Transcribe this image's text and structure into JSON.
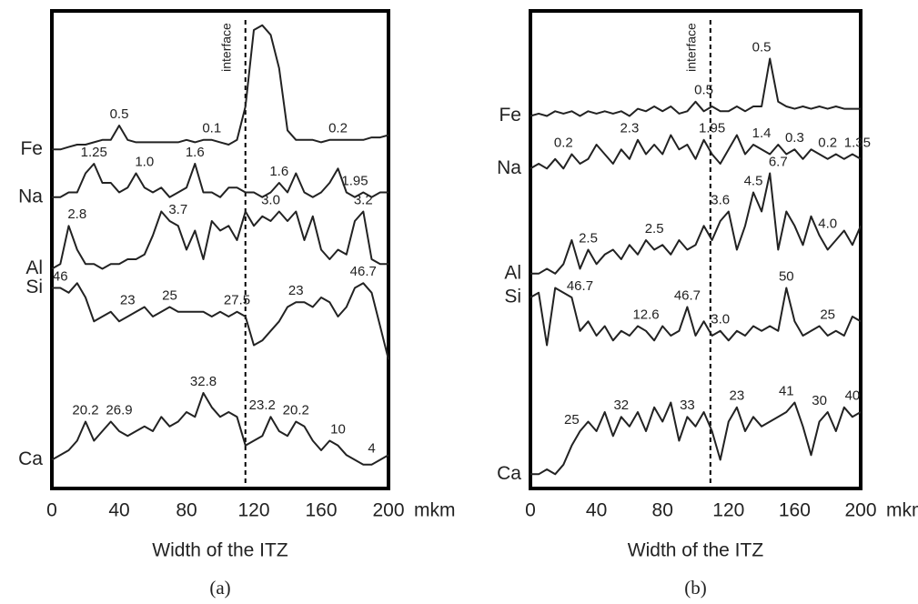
{
  "chart_data": [
    {
      "type": "line",
      "caption": "(a)",
      "xlabel": "Width of the ITZ",
      "x_unit": "mkm",
      "xlim": [
        0,
        200
      ],
      "xticks": [
        0,
        40,
        80,
        120,
        160,
        200
      ],
      "ylim": [
        0,
        100
      ],
      "interface": {
        "x": 115,
        "label": "interface"
      },
      "x": [
        0,
        5,
        10,
        15,
        20,
        25,
        30,
        35,
        40,
        45,
        50,
        55,
        60,
        65,
        70,
        75,
        80,
        85,
        90,
        95,
        100,
        105,
        110,
        115,
        120,
        125,
        130,
        135,
        140,
        145,
        150,
        155,
        160,
        165,
        170,
        175,
        180,
        185,
        190,
        195,
        200
      ],
      "series": [
        {
          "name": "Fe",
          "color": "#222222",
          "values": [
            71,
            71,
            71.5,
            72,
            72,
            72.5,
            73,
            73,
            76,
            73,
            72.5,
            72.5,
            72.5,
            72.5,
            72.5,
            72.5,
            73,
            72.5,
            73,
            73,
            72.5,
            72,
            73,
            80,
            96,
            97,
            95,
            88,
            75,
            73,
            73,
            73,
            72.5,
            73,
            73,
            73,
            73,
            73,
            73.5,
            73.5,
            74
          ],
          "notes": [
            {
              "x": 40,
              "label": "0.5"
            },
            {
              "x": 95,
              "label": "0.1"
            },
            {
              "x": 170,
              "label": "0.2"
            }
          ]
        },
        {
          "name": "Na",
          "color": "#222222",
          "values": [
            61,
            61,
            62,
            62,
            66,
            68,
            64,
            64,
            62,
            63,
            66,
            63,
            62,
            63,
            61,
            62,
            63,
            68,
            62,
            62,
            61,
            63,
            63,
            62,
            62,
            61,
            62,
            64,
            62,
            66,
            62,
            61,
            62,
            64,
            67,
            62,
            61,
            62,
            61,
            62,
            62
          ],
          "notes": [
            {
              "x": 25,
              "label": "1.25"
            },
            {
              "x": 55,
              "label": "1.0"
            },
            {
              "x": 85,
              "label": "1.6"
            },
            {
              "x": 135,
              "label": "1.6"
            },
            {
              "x": 180,
              "label": "1.95"
            }
          ]
        },
        {
          "name": "Al",
          "color": "#222222",
          "values": [
            46,
            47,
            55,
            50,
            47,
            47,
            46,
            47,
            47,
            48,
            48,
            49,
            53,
            58,
            56,
            55,
            50,
            54,
            48,
            56,
            54,
            55,
            52,
            58,
            55,
            57,
            56,
            58,
            56,
            58,
            52,
            57,
            50,
            48,
            50,
            49,
            56,
            58,
            48,
            47,
            47
          ],
          "notes": [
            {
              "x": 15,
              "label": "2.8"
            },
            {
              "x": 75,
              "label": "3.7"
            },
            {
              "x": 130,
              "label": "3.0"
            },
            {
              "x": 185,
              "label": "3.2"
            }
          ]
        },
        {
          "name": "Si",
          "color": "#222222",
          "values": [
            42,
            42,
            41,
            43,
            40,
            35,
            36,
            37,
            35,
            36,
            37,
            38,
            36,
            37,
            38,
            37,
            37,
            37,
            37,
            36,
            37,
            36,
            37,
            36,
            30,
            31,
            33,
            35,
            38,
            39,
            39,
            38,
            40,
            39,
            36,
            38,
            42,
            43,
            41,
            34,
            27
          ],
          "notes": [
            {
              "x": 5,
              "label": "46"
            },
            {
              "x": 45,
              "label": "23"
            },
            {
              "x": 70,
              "label": "25"
            },
            {
              "x": 110,
              "label": "27.5"
            },
            {
              "x": 145,
              "label": "23"
            },
            {
              "x": 185,
              "label": "46.7"
            }
          ]
        },
        {
          "name": "Ca",
          "color": "#222222",
          "values": [
            6,
            7,
            8,
            10,
            14,
            10,
            12,
            14,
            12,
            11,
            12,
            13,
            12,
            15,
            13,
            14,
            16,
            15,
            20,
            17,
            15,
            16,
            15,
            9,
            10,
            11,
            15,
            12,
            11,
            14,
            13,
            10,
            8,
            10,
            9,
            7,
            6,
            5,
            5,
            6,
            7
          ],
          "notes": [
            {
              "x": 20,
              "label": "20.2"
            },
            {
              "x": 40,
              "label": "26.9"
            },
            {
              "x": 90,
              "label": "32.8"
            },
            {
              "x": 125,
              "label": "23.2"
            },
            {
              "x": 145,
              "label": "20.2"
            },
            {
              "x": 170,
              "label": "10"
            },
            {
              "x": 190,
              "label": "4"
            }
          ]
        }
      ]
    },
    {
      "type": "line",
      "caption": "(b)",
      "xlabel": "Width of the ITZ",
      "x_unit": "mkm",
      "xlim": [
        0,
        200
      ],
      "xticks": [
        0,
        40,
        80,
        120,
        160,
        200
      ],
      "ylim": [
        0,
        100
      ],
      "interface": {
        "x": 109,
        "label": "interface"
      },
      "x": [
        0,
        5,
        10,
        15,
        20,
        25,
        30,
        35,
        40,
        45,
        50,
        55,
        60,
        65,
        70,
        75,
        80,
        85,
        90,
        95,
        100,
        105,
        110,
        115,
        120,
        125,
        130,
        135,
        140,
        145,
        150,
        155,
        160,
        165,
        170,
        175,
        180,
        185,
        190,
        195,
        200
      ],
      "series": [
        {
          "name": "Fe",
          "color": "#222222",
          "values": [
            78,
            78.5,
            78,
            79,
            78.5,
            79,
            78,
            79,
            78.5,
            79,
            78.5,
            79,
            78,
            79.5,
            79,
            80,
            79,
            80,
            78.5,
            79,
            81,
            79,
            80,
            79,
            79,
            80,
            79,
            80,
            80,
            90,
            81,
            80,
            79.5,
            80,
            79.5,
            80,
            79.5,
            80,
            79.5,
            79.5,
            79.5
          ],
          "notes": [
            {
              "x": 105,
              "label": "0.5"
            },
            {
              "x": 140,
              "label": "0.5"
            }
          ]
        },
        {
          "name": "Na",
          "color": "#222222",
          "values": [
            67,
            68,
            67,
            69,
            67,
            70,
            68,
            69,
            72,
            70,
            68,
            71,
            69,
            73,
            70,
            72,
            70,
            74,
            71,
            72,
            69,
            73,
            70,
            68,
            71,
            74,
            70,
            72,
            71,
            70,
            72,
            70,
            71,
            69,
            71,
            70,
            69,
            70,
            69,
            70,
            69
          ],
          "notes": [
            {
              "x": 20,
              "label": "0.2"
            },
            {
              "x": 60,
              "label": "2.3"
            },
            {
              "x": 110,
              "label": "1.95"
            },
            {
              "x": 140,
              "label": "1.4"
            },
            {
              "x": 160,
              "label": "0.3"
            },
            {
              "x": 180,
              "label": "0.2"
            },
            {
              "x": 198,
              "label": "1.35"
            }
          ]
        },
        {
          "name": "Al",
          "color": "#222222",
          "values": [
            45,
            45,
            46,
            45,
            47,
            52,
            46,
            50,
            47,
            49,
            50,
            48,
            51,
            49,
            52,
            50,
            51,
            49,
            52,
            50,
            51,
            55,
            52,
            56,
            58,
            50,
            55,
            62,
            58,
            66,
            50,
            58,
            55,
            51,
            57,
            53,
            50,
            52,
            54,
            51,
            55
          ],
          "notes": [
            {
              "x": 35,
              "label": "2.5"
            },
            {
              "x": 75,
              "label": "2.5"
            },
            {
              "x": 115,
              "label": "3.6"
            },
            {
              "x": 135,
              "label": "4.5"
            },
            {
              "x": 150,
              "label": "6.7"
            },
            {
              "x": 180,
              "label": "4.0"
            }
          ]
        },
        {
          "name": "Si",
          "color": "#222222",
          "values": [
            40,
            41,
            30,
            42,
            41,
            40,
            33,
            35,
            32,
            34,
            31,
            33,
            32,
            34,
            33,
            31,
            34,
            32,
            33,
            38,
            32,
            35,
            32,
            33,
            31,
            33,
            32,
            34,
            33,
            34,
            33,
            42,
            35,
            32,
            33,
            34,
            32,
            33,
            32,
            36,
            35
          ],
          "notes": [
            {
              "x": 30,
              "label": "46.7"
            },
            {
              "x": 70,
              "label": "12.6"
            },
            {
              "x": 95,
              "label": "46.7"
            },
            {
              "x": 115,
              "label": "3.0"
            },
            {
              "x": 155,
              "label": "50"
            },
            {
              "x": 180,
              "label": "25"
            }
          ]
        },
        {
          "name": "Ca",
          "color": "#222222",
          "values": [
            3,
            3,
            4,
            3,
            5,
            9,
            12,
            14,
            12,
            16,
            11,
            15,
            13,
            16,
            12,
            17,
            14,
            18,
            10,
            15,
            13,
            16,
            12,
            6,
            14,
            17,
            12,
            15,
            13,
            14,
            15,
            16,
            18,
            13,
            7,
            14,
            16,
            12,
            17,
            15,
            16
          ],
          "notes": [
            {
              "x": 25,
              "label": "25"
            },
            {
              "x": 55,
              "label": "32"
            },
            {
              "x": 95,
              "label": "33"
            },
            {
              "x": 125,
              "label": "23"
            },
            {
              "x": 155,
              "label": "41"
            },
            {
              "x": 175,
              "label": "30"
            },
            {
              "x": 195,
              "label": "40"
            }
          ]
        }
      ]
    }
  ]
}
